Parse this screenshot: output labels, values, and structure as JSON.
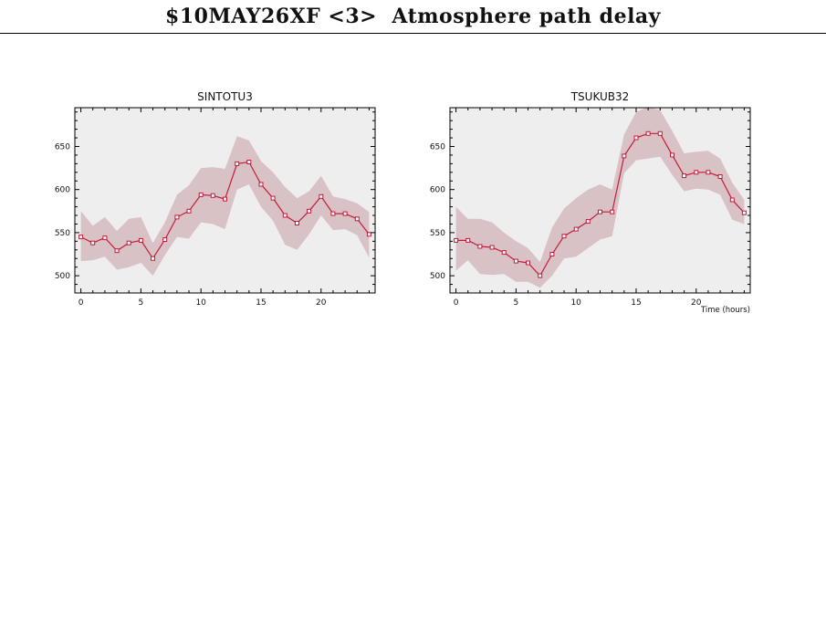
{
  "page": {
    "title": "$10MAY26XF <3>  Atmosphere path delay"
  },
  "colors": {
    "background": "#ffffff",
    "plot_area": "#eeeeee",
    "band": "#d9c2c6",
    "line": "#c41a3a",
    "axis": "#000000"
  },
  "chart_data": [
    {
      "type": "line",
      "title": "SINTOTU3",
      "xlabel": "",
      "ylabel": "",
      "xlim": [
        -0.5,
        24.5
      ],
      "ylim": [
        480,
        695
      ],
      "xticks": [
        0,
        5,
        10,
        15,
        20
      ],
      "yticks": [
        500,
        550,
        600,
        650
      ],
      "grid": false,
      "series": [
        {
          "x": [
            0,
            1,
            2,
            3,
            4,
            5,
            6,
            7,
            8,
            9,
            10,
            11,
            12,
            13,
            14,
            15,
            16,
            17,
            18,
            19,
            20,
            21,
            22,
            23,
            24
          ],
          "values": [
            545,
            538,
            544,
            529,
            538,
            541,
            520,
            542,
            568,
            575,
            594,
            593,
            589,
            630,
            632,
            606,
            590,
            570,
            561,
            575,
            592,
            572,
            572,
            566,
            548
          ],
          "upper": [
            575,
            558,
            568,
            552,
            566,
            568,
            538,
            562,
            594,
            605,
            625,
            626,
            624,
            662,
            657,
            633,
            620,
            603,
            590,
            598,
            616,
            592,
            589,
            584,
            574
          ],
          "lower": [
            517,
            518,
            522,
            507,
            510,
            515,
            500,
            524,
            545,
            543,
            562,
            560,
            554,
            600,
            606,
            580,
            564,
            536,
            530,
            548,
            570,
            553,
            554,
            547,
            521
          ]
        }
      ]
    },
    {
      "type": "line",
      "title": "TSUKUB32",
      "xlabel": "Time (hours)",
      "ylabel": "",
      "xlim": [
        -0.5,
        24.5
      ],
      "ylim": [
        480,
        695
      ],
      "xticks": [
        0,
        5,
        10,
        15,
        20
      ],
      "yticks": [
        500,
        550,
        600,
        650
      ],
      "grid": false,
      "series": [
        {
          "x": [
            0,
            1,
            2,
            3,
            4,
            5,
            6,
            7,
            8,
            9,
            10,
            11,
            12,
            13,
            14,
            15,
            16,
            17,
            18,
            19,
            20,
            21,
            22,
            23,
            24
          ],
          "values": [
            541,
            541,
            534,
            533,
            527,
            517,
            515,
            500,
            525,
            546,
            554,
            563,
            574,
            574,
            639,
            660,
            665,
            665,
            640,
            616,
            620,
            620,
            615,
            588,
            573
          ],
          "upper": [
            580,
            566,
            566,
            562,
            550,
            540,
            532,
            516,
            556,
            578,
            590,
            600,
            606,
            600,
            664,
            690,
            696,
            692,
            668,
            642,
            644,
            645,
            636,
            608,
            588
          ],
          "lower": [
            506,
            518,
            502,
            501,
            502,
            493,
            493,
            486,
            500,
            520,
            522,
            532,
            542,
            546,
            619,
            634,
            636,
            638,
            617,
            598,
            601,
            600,
            594,
            565,
            560
          ]
        }
      ]
    }
  ]
}
